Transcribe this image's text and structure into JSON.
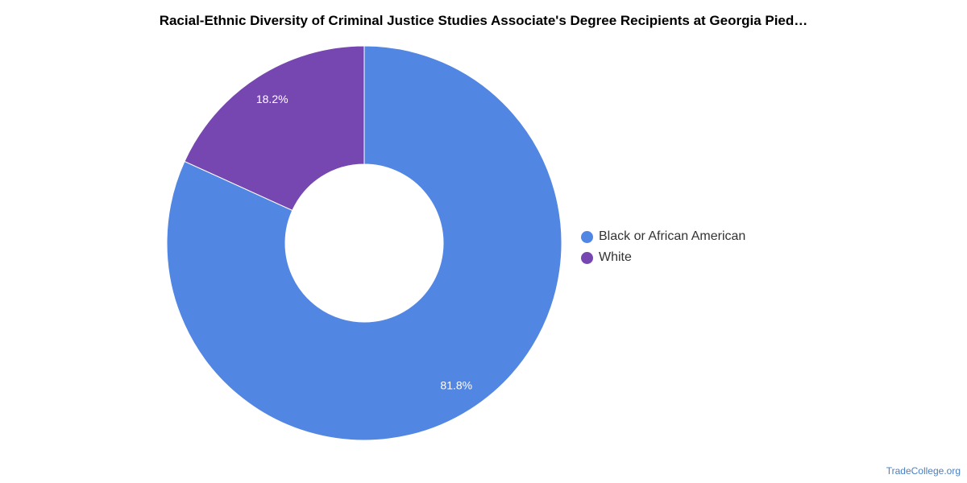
{
  "chart_title": "Racial-Ethnic Diversity of Criminal Justice Studies Associate's Degree Recipients at Georgia Pied…",
  "source": "TradeCollege.org",
  "chart_data": {
    "type": "pie",
    "title": "Racial-Ethnic Diversity of Criminal Justice Studies Associate's Degree Recipients at Georgia Pied…",
    "donut": true,
    "legend_position": "right",
    "categories": [
      "Black or African American",
      "White"
    ],
    "values": [
      81.8,
      18.2
    ],
    "data_labels": [
      "81.8%",
      "18.2%"
    ],
    "colors": [
      "#5286e3",
      "#7747b1"
    ]
  }
}
